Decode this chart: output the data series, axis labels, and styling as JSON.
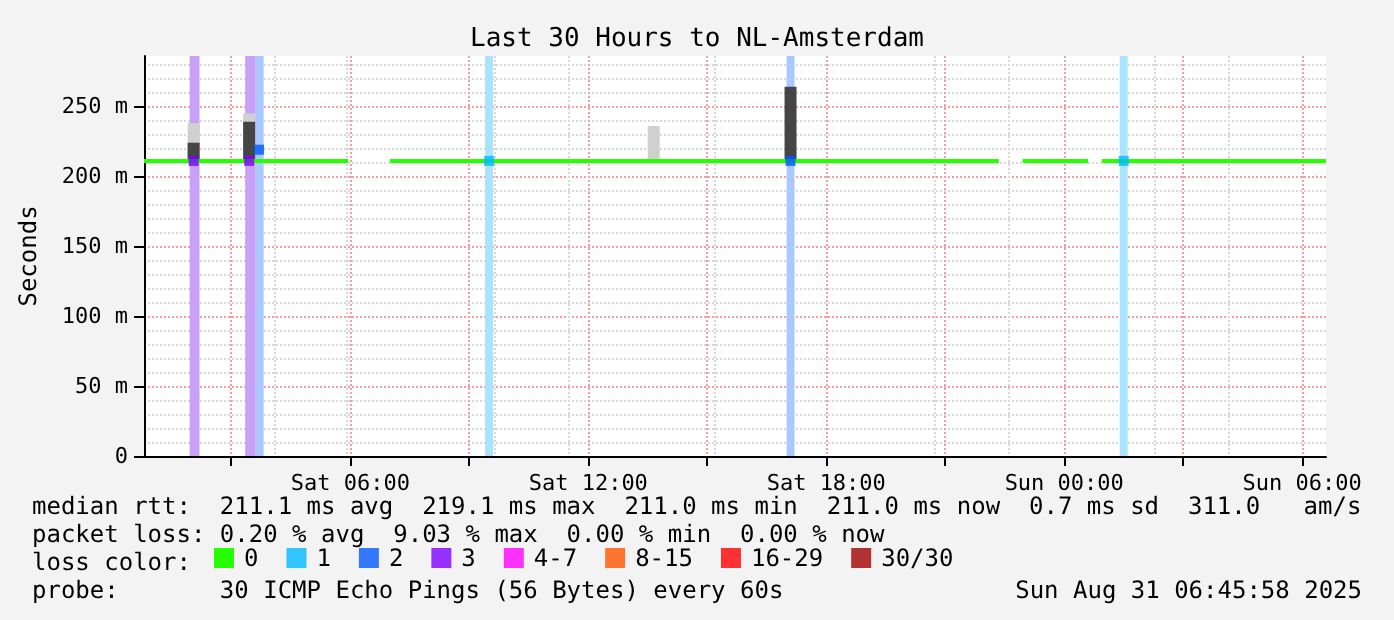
{
  "chart_data": {
    "type": "line",
    "title": "Last 30 Hours to NL-Amsterdam",
    "ylabel": "Seconds",
    "xlim": [
      "2025-08-30T00:48",
      "2025-08-31T06:36"
    ],
    "xticks": [
      {
        "value": "2025-08-30T03:00",
        "label": null
      },
      {
        "value": "2025-08-30T06:00",
        "label": "Sat 06:00"
      },
      {
        "value": "2025-08-30T09:00",
        "label": null
      },
      {
        "value": "2025-08-30T12:00",
        "label": "Sat 12:00"
      },
      {
        "value": "2025-08-30T15:00",
        "label": null
      },
      {
        "value": "2025-08-30T18:00",
        "label": "Sat 18:00"
      },
      {
        "value": "2025-08-30T21:00",
        "label": null
      },
      {
        "value": "2025-08-31T00:00",
        "label": "Sun 00:00"
      },
      {
        "value": "2025-08-31T03:00",
        "label": null
      },
      {
        "value": "2025-08-31T06:00",
        "label": "Sun 06:00"
      }
    ],
    "ylim": [
      0,
      286
    ],
    "yticks": [
      0,
      {
        "value": 50,
        "label": "50 m"
      },
      {
        "value": 100,
        "label": "100 m"
      },
      {
        "value": 150,
        "label": "150 m"
      },
      {
        "value": 200,
        "label": "200 m"
      },
      {
        "value": 250,
        "label": "250 m"
      }
    ],
    "grid": true,
    "legend": "bottom",
    "legend_title": "loss color:",
    "series": [
      {
        "type": "bar",
        "color": "#d0d0d0",
        "x": [
          "2025-08-30T02:03",
          "2025-08-30T03:27",
          "2025-08-30T13:39"
        ],
        "base": [
          211,
          211,
          211
        ],
        "values": [
          27,
          34,
          25
        ]
      },
      {
        "type": "bar",
        "color": "#454545",
        "x": [
          "2025-08-30T02:03",
          "2025-08-30T03:27",
          "2025-08-30T17:06"
        ],
        "base": [
          211,
          211,
          211
        ],
        "values": [
          13,
          28,
          53
        ]
      },
      {
        "name": "0",
        "color": "#26ff00",
        "x": [
          "2025-08-30T00:48",
          "2025-08-30T05:57",
          "2025-08-30T06:30",
          "2025-08-30T07:00",
          "2025-08-30T22:21",
          "2025-08-30T22:39",
          "2025-08-30T22:57",
          "2025-08-31T00:36",
          "2025-08-31T00:48",
          "2025-08-31T00:57",
          "2025-08-31T06:36"
        ],
        "values": [
          211,
          211,
          null,
          211,
          211,
          null,
          211,
          211,
          null,
          211,
          211
        ]
      },
      {
        "type": "scatter",
        "name": "1",
        "color": "#00b8ff",
        "marker": "square",
        "x": [
          "2025-08-30T09:30",
          "2025-08-31T01:30"
        ],
        "values": [
          211,
          211
        ]
      },
      {
        "type": "scatter",
        "name": "2",
        "color": "#0059ff",
        "marker": "square",
        "x": [
          "2025-08-30T03:42",
          "2025-08-30T17:06"
        ],
        "values": [
          219,
          211
        ]
      },
      {
        "type": "scatter",
        "name": "3",
        "color": "#7e00ff",
        "marker": "square",
        "x": [
          "2025-08-30T02:03",
          "2025-08-30T03:27"
        ],
        "values": [
          211,
          211
        ]
      },
      {
        "type": "scatter",
        "name": "4-7",
        "color": "#ff00ff",
        "marker": "square"
      },
      {
        "type": "scatter",
        "name": "8-15",
        "color": "#ff5500",
        "marker": "square"
      },
      {
        "type": "scatter",
        "name": "16-29",
        "color": "#ff0000",
        "marker": "square"
      },
      {
        "type": "scatter",
        "name": "30/30",
        "color": "#a10000",
        "marker": "square"
      }
    ],
    "bands": [
      {
        "axis": "x",
        "from": "2025-08-30T01:57",
        "to": "2025-08-30T02:12",
        "color": "#c8a0f8"
      },
      {
        "axis": "x",
        "from": "2025-08-30T03:21",
        "to": "2025-08-30T03:37",
        "color": "#c8a0f8"
      },
      {
        "axis": "x",
        "from": "2025-08-30T03:37",
        "to": "2025-08-30T03:49",
        "color": "#a8c8ff"
      },
      {
        "axis": "x",
        "from": "2025-08-30T09:24",
        "to": "2025-08-30T09:36",
        "color": "#a8e4ff"
      },
      {
        "axis": "x",
        "from": "2025-08-30T17:00",
        "to": "2025-08-30T17:12",
        "color": "#a8c8ff"
      },
      {
        "axis": "x",
        "from": "2025-08-31T01:24",
        "to": "2025-08-31T01:36",
        "color": "#a8e4ff"
      }
    ],
    "annotations": [
      "median rtt:  211.1 ms avg  219.1 ms max  211.0 ms min  211.0 ms now  0.7 ms sd  311.0   am/s",
      "packet loss: 0.20 % avg  9.03 % max  0.00 % min  0.00 % now",
      "probe:       30 ICMP Echo Pings (56 Bytes) every 60s",
      "Sun Aug 31 06:45:58 2025"
    ]
  }
}
